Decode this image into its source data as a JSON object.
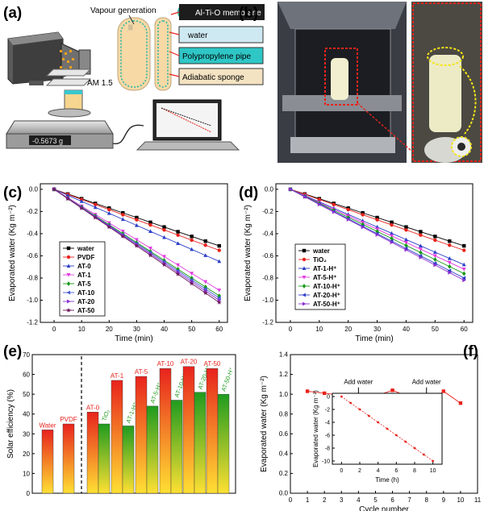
{
  "panel_labels": [
    "(a)",
    "(b)",
    "(c)",
    "(d)",
    "(e)",
    "(f)"
  ],
  "setup": {
    "vapour_label": "Vapour generation",
    "membrane_label": "Al-Ti-O membrane",
    "water_label": "water",
    "pipe_label": "Polypropylene pipe",
    "sponge_label": "Adiabatic sponge",
    "light_label": "AM 1.5",
    "balance_reading": "-0.5673 g"
  },
  "chart_data": [
    {
      "id": "c",
      "type": "line",
      "xlabel": "Time (min)",
      "ylabel": "Evaporated water (Kg m⁻²)",
      "xlim": [
        -5,
        63
      ],
      "ylim": [
        -1.2,
        0.05
      ],
      "xticks": [
        0,
        10,
        20,
        30,
        40,
        50,
        60
      ],
      "yticks": [
        0.0,
        -0.2,
        -0.4,
        -0.6,
        -0.8,
        -1.0,
        -1.2
      ],
      "x": [
        0,
        5,
        10,
        15,
        20,
        25,
        30,
        35,
        40,
        45,
        50,
        55,
        60
      ],
      "legend_position": "bottom-left",
      "series": [
        {
          "name": "water",
          "color": "#000000",
          "marker": "square",
          "end": -0.51
        },
        {
          "name": "PVDF",
          "color": "#e8231d",
          "marker": "circle",
          "end": -0.55
        },
        {
          "name": "AT-0",
          "color": "#2b3ec8",
          "marker": "triangle",
          "end": -0.65
        },
        {
          "name": "AT-1",
          "color": "#e33ae0",
          "marker": "tri-down",
          "end": -0.91
        },
        {
          "name": "AT-5",
          "color": "#169a16",
          "marker": "diamond",
          "end": -0.96
        },
        {
          "name": "AT-10",
          "color": "#4258d6",
          "marker": "tri-left",
          "end": -0.98
        },
        {
          "name": "AT-20",
          "color": "#8b2fd0",
          "marker": "tri-right",
          "end": -1.0
        },
        {
          "name": "AT-50",
          "color": "#6e1b5e",
          "marker": "star",
          "end": -1.02
        }
      ]
    },
    {
      "id": "d",
      "type": "line",
      "xlabel": "Time (min)",
      "ylabel": "Evaporated water (Kg m⁻²)",
      "xlim": [
        -5,
        63
      ],
      "ylim": [
        -1.2,
        0.05
      ],
      "xticks": [
        0,
        10,
        20,
        30,
        40,
        50,
        60
      ],
      "yticks": [
        0.0,
        -0.2,
        -0.4,
        -0.6,
        -0.8,
        -1.0,
        -1.2
      ],
      "x": [
        0,
        5,
        10,
        15,
        20,
        25,
        30,
        35,
        40,
        45,
        50,
        55,
        60
      ],
      "legend_position": "bottom-left",
      "series": [
        {
          "name": "water",
          "color": "#000000",
          "marker": "square",
          "end": -0.51
        },
        {
          "name": "TiO₂",
          "color": "#e8231d",
          "marker": "circle",
          "end": -0.55
        },
        {
          "name": "AT-1-H⁺",
          "color": "#2b3ec8",
          "marker": "triangle",
          "end": -0.68
        },
        {
          "name": "AT-5-H⁺",
          "color": "#e33ae0",
          "marker": "tri-down",
          "end": -0.72
        },
        {
          "name": "AT-10-H⁺",
          "color": "#169a16",
          "marker": "diamond",
          "end": -0.76
        },
        {
          "name": "AT-20-H⁺",
          "color": "#2b3ec8",
          "marker": "tri-left",
          "end": -0.8
        },
        {
          "name": "AT-50-H⁺",
          "color": "#8b2fd0",
          "marker": "tri-right",
          "end": -0.82
        }
      ]
    },
    {
      "id": "e",
      "type": "bar",
      "ylabel": "Solar efficiency (%)",
      "ylim": [
        0,
        70
      ],
      "yticks": [
        0,
        10,
        20,
        30,
        40,
        50,
        60,
        70
      ],
      "bars": [
        {
          "label": "Water",
          "value": 32,
          "style": "red"
        },
        {
          "label": "PVDF",
          "value": 35,
          "style": "red"
        },
        {
          "label": "AT-0",
          "value": 41,
          "style": "red"
        },
        {
          "label": "TiO₂",
          "value": 35,
          "style": "green"
        },
        {
          "label": "AT-1",
          "value": 57,
          "style": "red"
        },
        {
          "label": "AT-1-H⁺",
          "value": 34,
          "style": "green"
        },
        {
          "label": "AT-5",
          "value": 59,
          "style": "red"
        },
        {
          "label": "AT-5-H⁺",
          "value": 44,
          "style": "green"
        },
        {
          "label": "AT-10",
          "value": 63,
          "style": "red"
        },
        {
          "label": "AT-10-H⁺",
          "value": 47,
          "style": "green"
        },
        {
          "label": "AT-20",
          "value": 64,
          "style": "red"
        },
        {
          "label": "AT-20-H⁺",
          "value": 51,
          "style": "green"
        },
        {
          "label": "AT-50",
          "value": 63,
          "style": "red"
        },
        {
          "label": "AT-50-H⁺",
          "value": 50,
          "style": "green"
        }
      ],
      "colors": {
        "red_top": "#e8231d",
        "red_bottom": "#ffe033",
        "green_top": "#1f9b1f",
        "green_bottom": "#ffe033"
      }
    },
    {
      "id": "f",
      "type": "line",
      "xlabel": "Cycle number",
      "ylabel": "Evaporated water (Kg m⁻²)",
      "xlim": [
        0,
        11
      ],
      "ylim": [
        0,
        1.4
      ],
      "xticks": [
        0,
        1,
        2,
        3,
        4,
        5,
        6,
        7,
        8,
        9,
        10,
        11
      ],
      "yticks": [
        0.0,
        0.2,
        0.4,
        0.6,
        0.8,
        1.0,
        1.2,
        1.4
      ],
      "x": [
        1,
        2,
        3,
        4,
        5,
        6,
        7,
        8,
        9,
        10
      ],
      "series": [
        {
          "color": "#e8231d",
          "values": [
            1.03,
            1.01,
            0.99,
            0.89,
            0.98,
            1.04,
            0.97,
            0.89,
            1.03,
            0.91
          ]
        }
      ],
      "annotations": [
        {
          "text": "Add water",
          "x": 4,
          "y": 0.89
        },
        {
          "text": "Add water",
          "x": 8,
          "y": 0.89
        }
      ],
      "inset": {
        "xlabel": "Time (h)",
        "ylabel": "Evaporated water (Kg m⁻²)",
        "xlim": [
          -1,
          11
        ],
        "ylim": [
          -10.5,
          0.5
        ],
        "xticks": [
          0,
          2,
          4,
          6,
          8,
          10
        ],
        "yticks": [
          0,
          -2,
          -4,
          -6,
          -8,
          -10
        ],
        "x": [
          0,
          1,
          2,
          3,
          4,
          5,
          6,
          7,
          8,
          9,
          10
        ],
        "values": [
          0,
          -1,
          -2,
          -3,
          -4,
          -5,
          -6,
          -7,
          -8,
          -9,
          -10
        ],
        "color": "#e8231d"
      }
    }
  ]
}
